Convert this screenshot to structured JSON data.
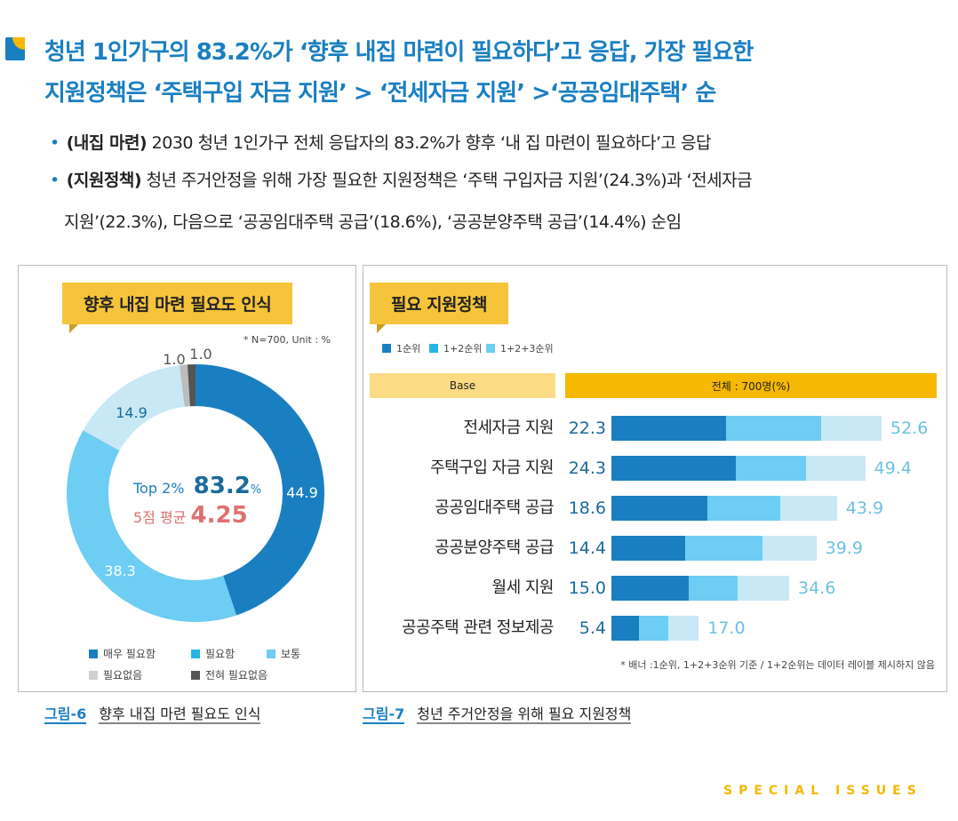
{
  "headline": {
    "line1": "청년 1인가구의 83.2%가 ‘향후 내집 마련이 필요하다’고 응답, 가장 필요한",
    "line2": "지원정책은 ‘주택구입 자금 지원’ > ‘전세자금 지원’ >‘공공임대주택’ 순"
  },
  "bullets": [
    {
      "label": "(내집 마련)",
      "text": "2030 청년 1인가구 전체 응답자의 83.2%가 향후 ‘내 집 마련이 필요하다’고 응답"
    },
    {
      "label": "(지원정책)",
      "text": "청년 주거안정을 위해 가장 필요한 지원정책은 ‘주택 구입자금 지원’(24.3%)과 ‘전세자금",
      "text2": "지원’(22.3%), 다음으로 ‘공공임대주택 공급’(18.6%), ‘공공분양주택 공급’(14.4%) 순임"
    }
  ],
  "chart_data": [
    {
      "type": "pie",
      "title": "향후 내집 마련 필요도 인식",
      "note": "* N=700, Unit : %",
      "categories": [
        "매우 필요함",
        "필요함",
        "보통",
        "필요없음",
        "전혀 필요없음"
      ],
      "values": [
        44.9,
        38.3,
        14.9,
        1.0,
        1.0
      ],
      "labels": [
        "44.9",
        "38.3",
        "14.9",
        "1.0",
        "1.0"
      ],
      "colors": [
        "#1a7fc1",
        "#6dcdf2",
        "#c8e8f6",
        "#bdbdbd",
        "#555555"
      ],
      "legend_colors": [
        "#1a7fc1",
        "#25b5e6",
        "#6dcdf2",
        "#d0d0d0",
        "#555555"
      ],
      "center": {
        "top2_label": "Top 2%",
        "top2_value": "83.2",
        "top2_unit": "%",
        "avg_label": "5점 평균",
        "avg_value": "4.25"
      },
      "caption_num": "그림-6",
      "caption": "향후 내집 마련 필요도 인식"
    },
    {
      "type": "bar",
      "title": "필요 지원정책",
      "series": [
        {
          "name": "1순위",
          "values": [
            22.3,
            24.3,
            18.6,
            14.4,
            15.0,
            5.4
          ]
        },
        {
          "name": "1+2순위",
          "values": [
            40.8,
            37.9,
            32.9,
            29.4,
            24.6,
            11.1
          ]
        },
        {
          "name": "1+2+3순위",
          "values": [
            52.6,
            49.4,
            43.9,
            39.9,
            34.6,
            17.0
          ]
        }
      ],
      "colors": [
        "#1a7fc1",
        "#6dcdf2",
        "#c8e8f6"
      ],
      "legend_colors": [
        "#1a7fc1",
        "#25b5e6",
        "#6dcdf2"
      ],
      "categories": [
        "전세자금 지원",
        "주택구입 자금 지원",
        "공공임대주택 공급",
        "공공분양주택 공급",
        "월세 지원",
        "공공주택 관련 정보제공"
      ],
      "base_label": "Base",
      "total_label": "전체 : 700명(%)",
      "note": "* 배너 :1순위, 1+2+3순위 기준 / 1+2순위는 데이터 레이블 제시하지 않음",
      "caption_num": "그림-7",
      "caption": "청년 주거안정을 위해 필요 지원정책"
    }
  ],
  "footer": "SPECIAL ISSUES"
}
